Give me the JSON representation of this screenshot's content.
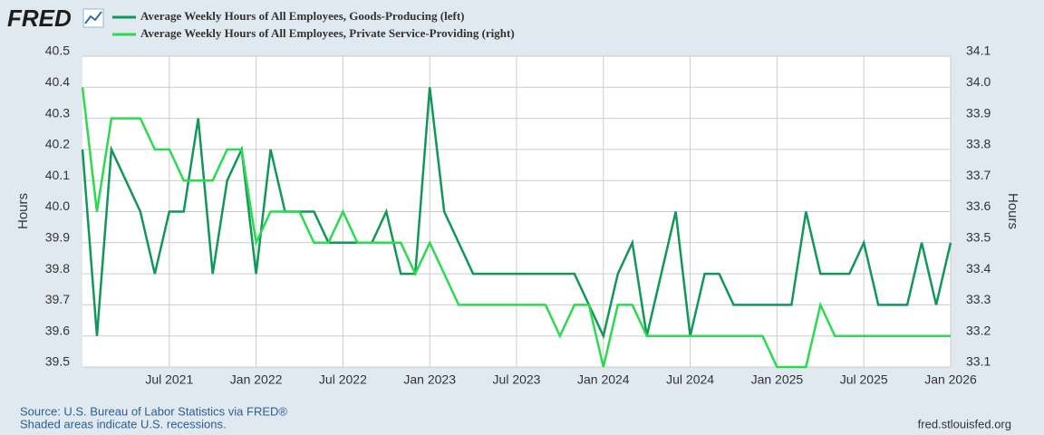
{
  "chart_data": {
    "type": "line",
    "logo": "FRED",
    "x": [
      "2021-01",
      "2021-02",
      "2021-03",
      "2021-04",
      "2021-05",
      "2021-06",
      "2021-07",
      "2021-08",
      "2021-09",
      "2021-10",
      "2021-11",
      "2021-12",
      "2022-01",
      "2022-02",
      "2022-03",
      "2022-04",
      "2022-05",
      "2022-06",
      "2022-07",
      "2022-08",
      "2022-09",
      "2022-10",
      "2022-11",
      "2022-12",
      "2023-01",
      "2023-02",
      "2023-03",
      "2023-04",
      "2023-05",
      "2023-06",
      "2023-07",
      "2023-08",
      "2023-09",
      "2023-10",
      "2023-11",
      "2023-12",
      "2024-01",
      "2024-02",
      "2024-03",
      "2024-04",
      "2024-05",
      "2024-06",
      "2024-07",
      "2024-08",
      "2024-09",
      "2024-10",
      "2024-11",
      "2024-12",
      "2025-01",
      "2025-02",
      "2025-03",
      "2025-04",
      "2025-05",
      "2025-06",
      "2025-07",
      "2025-08",
      "2025-09",
      "2025-10",
      "2025-11",
      "2025-12",
      "2026-01"
    ],
    "series": [
      {
        "name": "Average Weekly Hours of All Employees, Goods-Producing (left)",
        "color": "#12975a",
        "axis": "y",
        "values": [
          40.2,
          39.6,
          40.2,
          40.1,
          40.0,
          39.8,
          40.0,
          40.0,
          40.3,
          39.8,
          40.1,
          40.2,
          39.8,
          40.2,
          40.0,
          40.0,
          40.0,
          39.9,
          39.9,
          39.9,
          39.9,
          40.0,
          39.8,
          39.8,
          40.4,
          40.0,
          39.9,
          39.8,
          39.8,
          39.8,
          39.8,
          39.8,
          39.8,
          39.8,
          39.8,
          39.7,
          39.6,
          39.8,
          39.9,
          39.6,
          39.8,
          40.0,
          39.6,
          39.8,
          39.8,
          39.7,
          39.7,
          39.7,
          39.7,
          39.7,
          40.0,
          39.8,
          39.8,
          39.8,
          39.9,
          39.7,
          39.7,
          39.7,
          39.9,
          39.7,
          39.9
        ]
      },
      {
        "name": "Average Weekly Hours of All Employees, Private Service-Providing (right)",
        "color": "#2bdb4f",
        "axis": "y2",
        "values": [
          34.0,
          33.6,
          33.9,
          33.9,
          33.9,
          33.8,
          33.8,
          33.7,
          33.7,
          33.7,
          33.8,
          33.8,
          33.5,
          33.6,
          33.6,
          33.6,
          33.5,
          33.5,
          33.6,
          33.5,
          33.5,
          33.5,
          33.5,
          33.4,
          33.5,
          33.4,
          33.3,
          33.3,
          33.3,
          33.3,
          33.3,
          33.3,
          33.3,
          33.2,
          33.3,
          33.3,
          33.1,
          33.3,
          33.3,
          33.2,
          33.2,
          33.2,
          33.2,
          33.2,
          33.2,
          33.2,
          33.2,
          33.2,
          33.1,
          33.1,
          33.1,
          33.3,
          33.2,
          33.2,
          33.2,
          33.2,
          33.2,
          33.2,
          33.2,
          33.2,
          33.2
        ]
      }
    ],
    "ylim": [
      39.5,
      40.5
    ],
    "yticks": [
      39.5,
      39.6,
      39.7,
      39.8,
      39.9,
      {
        "value": 40,
        "label": "40.0"
      },
      40.1,
      40.2,
      40.3,
      40.4,
      40.5
    ],
    "y2lim": [
      33.1,
      34.1
    ],
    "y2ticks": [
      33.1,
      33.2,
      33.3,
      33.4,
      33.5,
      33.6,
      33.7,
      33.8,
      33.9,
      {
        "value": 34,
        "label": "34.0"
      },
      34.1
    ],
    "xticks": [
      {
        "value": "2021-07",
        "label": "Jul 2021"
      },
      {
        "value": "2022-01",
        "label": "Jan 2022"
      },
      {
        "value": "2022-07",
        "label": "Jul 2022"
      },
      {
        "value": "2023-01",
        "label": "Jan 2023"
      },
      {
        "value": "2023-07",
        "label": "Jul 2023"
      },
      {
        "value": "2024-01",
        "label": "Jan 2024"
      },
      {
        "value": "2024-07",
        "label": "Jul 2024"
      },
      {
        "value": "2025-01",
        "label": "Jan 2025"
      },
      {
        "value": "2025-07",
        "label": "Jul 2025"
      },
      {
        "value": "2026-01",
        "label": "Jan 2026"
      }
    ],
    "ylabel": "Hours",
    "y2label": "Hours",
    "grid": true,
    "source": "Source: U.S. Bureau of Labor Statistics via FRED®",
    "note": "Shaded areas indicate U.S. recessions.",
    "url": "fred.stlouisfed.org"
  }
}
